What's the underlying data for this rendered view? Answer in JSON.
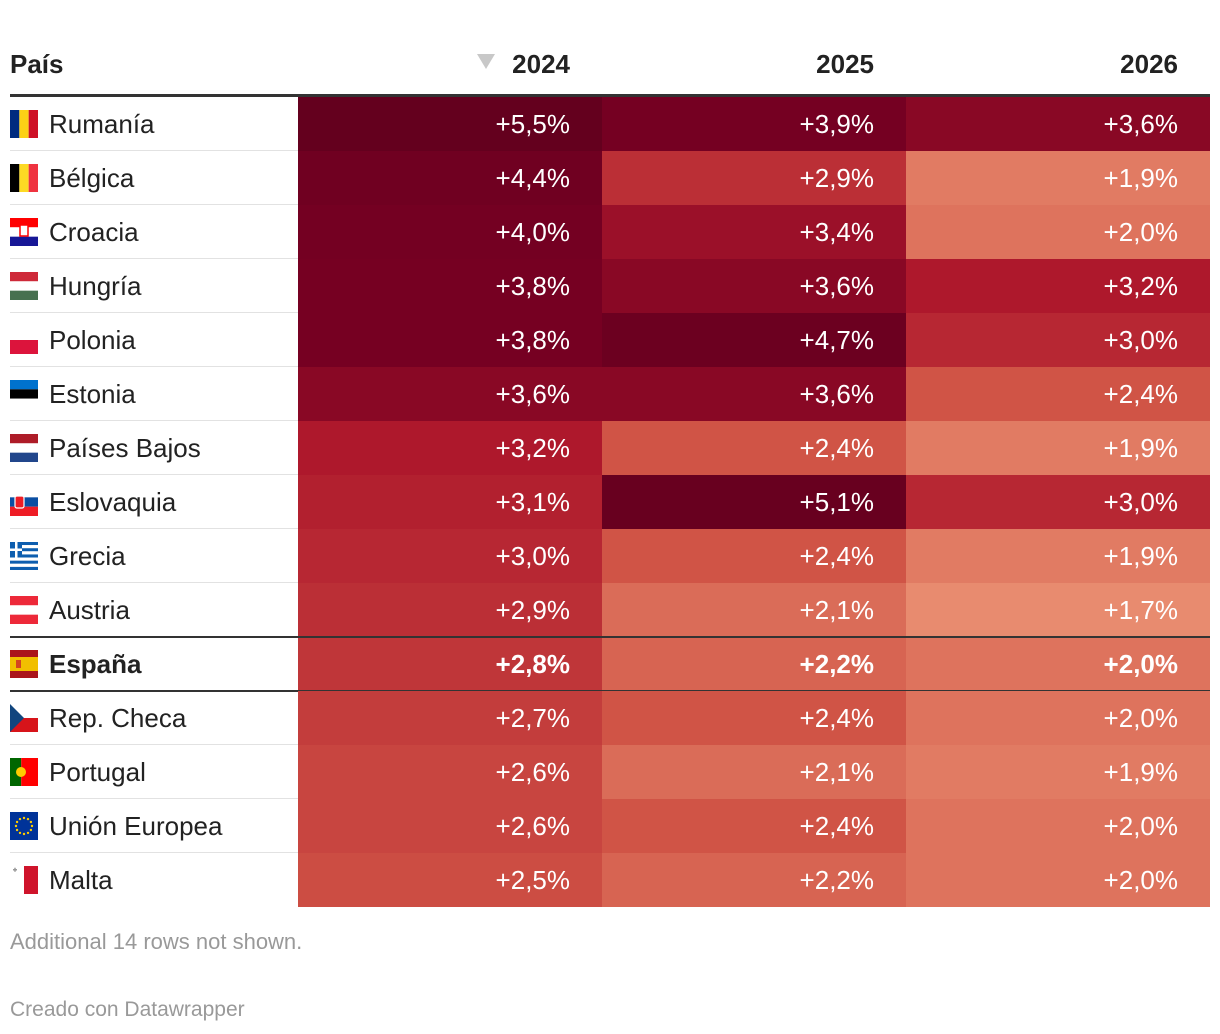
{
  "table": {
    "header": [
      "País",
      "2024",
      "2025",
      "2026"
    ],
    "highlighted_row": 10,
    "rows": [
      [
        "Rumanía",
        "+5,5%",
        "+3,9%",
        "+3,6%"
      ],
      [
        "Bélgica",
        "+4,4%",
        "+2,9%",
        "+1,9%"
      ],
      [
        "Croacia",
        "+4,0%",
        "+3,4%",
        "+2,0%"
      ],
      [
        "Hungría",
        "+3,8%",
        "+3,6%",
        "+3,2%"
      ],
      [
        "Polonia",
        "+3,8%",
        "+4,7%",
        "+3,0%"
      ],
      [
        "Estonia",
        "+3,6%",
        "+3,6%",
        "+2,4%"
      ],
      [
        "Países Bajos",
        "+3,2%",
        "+2,4%",
        "+1,9%"
      ],
      [
        "Eslovaquia",
        "+3,1%",
        "+5,1%",
        "+3,0%"
      ],
      [
        "Grecia",
        "+3,0%",
        "+2,4%",
        "+1,9%"
      ],
      [
        "Austria",
        "+2,9%",
        "+2,1%",
        "+1,7%"
      ],
      [
        "España",
        "+2,8%",
        "+2,2%",
        "+2,0%"
      ],
      [
        "Rep. Checa",
        "+2,7%",
        "+2,4%",
        "+2,0%"
      ],
      [
        "Portugal",
        "+2,6%",
        "+2,1%",
        "+1,9%"
      ],
      [
        "Unión Europea",
        "+2,6%",
        "+2,4%",
        "+2,0%"
      ],
      [
        "Malta",
        "+2,5%",
        "+2,2%",
        "+2,0%"
      ]
    ],
    "note": "Additional 14 rows not shown.",
    "credit": "Creado con Datawrapper"
  }
}
